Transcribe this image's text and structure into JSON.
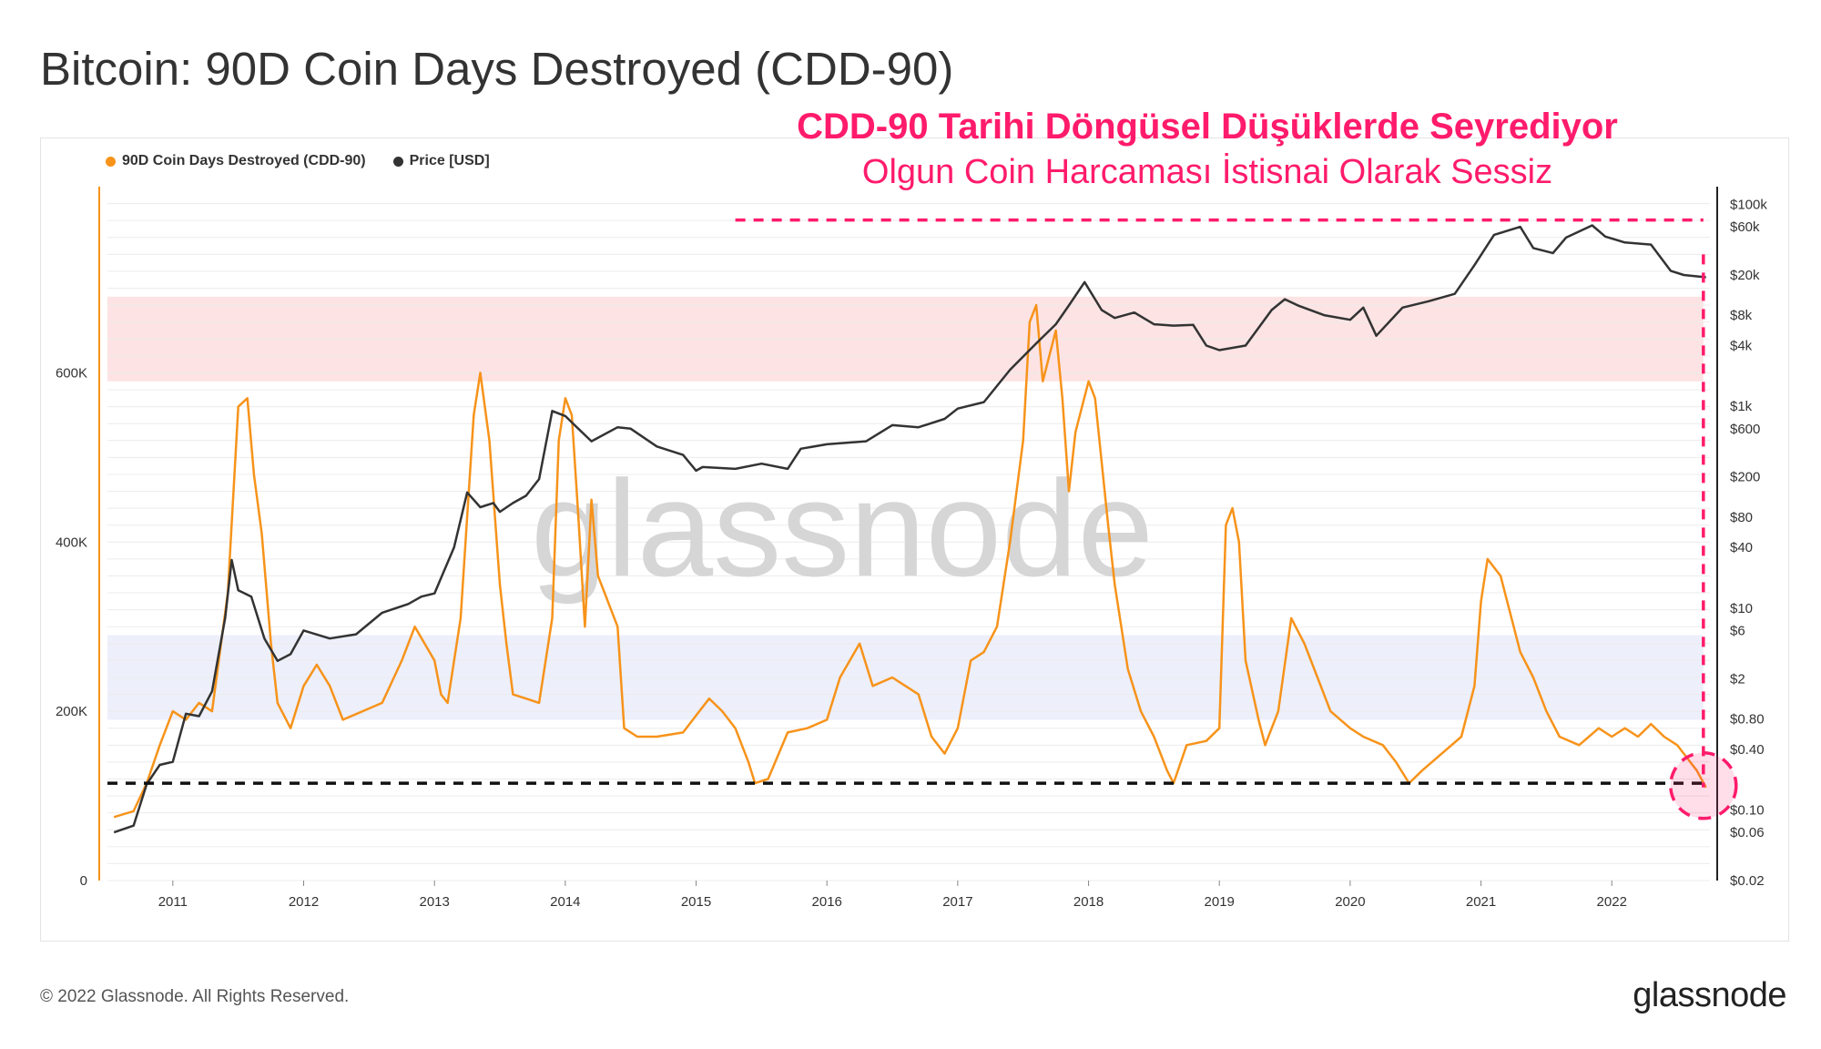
{
  "title": "Bitcoin: 90D Coin Days Destroyed (CDD-90)",
  "annotation": {
    "headline": "CDD-90 Tarihi Döngüsel Düşüklerde Seyrediyor",
    "subline": "Olgun Coin Harcaması İstisnai Olarak Sessiz",
    "color": "#ff1b6b"
  },
  "footer": {
    "copyright": "© 2022 Glassnode. All Rights Reserved.",
    "brand": "glassnode"
  },
  "watermark": "glassnode",
  "chart_data": {
    "type": "line",
    "legend": [
      {
        "name": "90D Coin Days Destroyed (CDD-90)",
        "color": "#f7931a"
      },
      {
        "name": "Price [USD]",
        "color": "#333333"
      }
    ],
    "legend_position": "top-left",
    "x_ticks": [
      "2011",
      "2012",
      "2013",
      "2014",
      "2015",
      "2016",
      "2017",
      "2018",
      "2019",
      "2020",
      "2021",
      "2022"
    ],
    "x_range": [
      2010.5,
      2022.75
    ],
    "y_left": {
      "ticks": [
        {
          "value": 0,
          "label": "0"
        },
        {
          "value": 200000,
          "label": "200K"
        },
        {
          "value": 400000,
          "label": "400K"
        },
        {
          "value": 600000,
          "label": "600K"
        }
      ],
      "range": [
        0,
        820000
      ]
    },
    "y_right": {
      "scale": "log",
      "range": [
        0.02,
        150000
      ],
      "ticks": [
        {
          "value": 100000,
          "label": "$100k"
        },
        {
          "value": 60000,
          "label": "$60k"
        },
        {
          "value": 20000,
          "label": "$20k"
        },
        {
          "value": 8000,
          "label": "$8k"
        },
        {
          "value": 4000,
          "label": "$4k"
        },
        {
          "value": 1000,
          "label": "$1k"
        },
        {
          "value": 600,
          "label": "$600"
        },
        {
          "value": 200,
          "label": "$200"
        },
        {
          "value": 80,
          "label": "$80"
        },
        {
          "value": 40,
          "label": "$40"
        },
        {
          "value": 10,
          "label": "$10"
        },
        {
          "value": 6,
          "label": "$6"
        },
        {
          "value": 2,
          "label": "$2"
        },
        {
          "value": 0.8,
          "label": "$0.80"
        },
        {
          "value": 0.4,
          "label": "$0.40"
        },
        {
          "value": 0.1,
          "label": "$0.10"
        },
        {
          "value": 0.06,
          "label": "$0.06"
        },
        {
          "value": 0.02,
          "label": "$0.02"
        }
      ]
    },
    "grid": true,
    "bands": [
      {
        "y_range": [
          590000,
          690000
        ],
        "color": "#fde3e3"
      },
      {
        "y_range": [
          190000,
          290000
        ],
        "color": "#edeffb"
      }
    ],
    "reference_lines": [
      {
        "axis": "left",
        "y": 115000,
        "x_range": [
          2010.5,
          2022.75
        ],
        "color": "#111111",
        "style": "dashed"
      },
      {
        "axis": "right",
        "y": 70000,
        "x_range": [
          2015.3,
          2022.7
        ],
        "color": "#ff1b6b",
        "style": "dashed"
      },
      {
        "axis": "x",
        "x": 2022.7,
        "y_range": [
          110000,
          740000
        ],
        "color": "#ff1b6b",
        "style": "dashed"
      }
    ],
    "highlight": {
      "x": 2022.7,
      "y": 110000,
      "color": "#ff1b6b"
    },
    "series": [
      {
        "name": "90D Coin Days Destroyed (CDD-90)",
        "color": "#f7931a",
        "axis": "left",
        "points": [
          [
            2010.55,
            75000
          ],
          [
            2010.7,
            82000
          ],
          [
            2010.8,
            115000
          ],
          [
            2010.9,
            160000
          ],
          [
            2011.0,
            200000
          ],
          [
            2011.1,
            190000
          ],
          [
            2011.2,
            210000
          ],
          [
            2011.3,
            200000
          ],
          [
            2011.42,
            340000
          ],
          [
            2011.5,
            560000
          ],
          [
            2011.57,
            570000
          ],
          [
            2011.62,
            480000
          ],
          [
            2011.68,
            410000
          ],
          [
            2011.75,
            280000
          ],
          [
            2011.8,
            210000
          ],
          [
            2011.9,
            180000
          ],
          [
            2012.0,
            230000
          ],
          [
            2012.1,
            255000
          ],
          [
            2012.2,
            230000
          ],
          [
            2012.3,
            190000
          ],
          [
            2012.45,
            200000
          ],
          [
            2012.6,
            210000
          ],
          [
            2012.75,
            260000
          ],
          [
            2012.85,
            300000
          ],
          [
            2013.0,
            260000
          ],
          [
            2013.05,
            220000
          ],
          [
            2013.1,
            210000
          ],
          [
            2013.2,
            310000
          ],
          [
            2013.3,
            550000
          ],
          [
            2013.35,
            600000
          ],
          [
            2013.42,
            520000
          ],
          [
            2013.5,
            350000
          ],
          [
            2013.55,
            280000
          ],
          [
            2013.6,
            220000
          ],
          [
            2013.7,
            215000
          ],
          [
            2013.8,
            210000
          ],
          [
            2013.9,
            310000
          ],
          [
            2013.95,
            520000
          ],
          [
            2014.0,
            570000
          ],
          [
            2014.05,
            550000
          ],
          [
            2014.1,
            430000
          ],
          [
            2014.15,
            300000
          ],
          [
            2014.2,
            450000
          ],
          [
            2014.25,
            360000
          ],
          [
            2014.3,
            340000
          ],
          [
            2014.35,
            320000
          ],
          [
            2014.4,
            300000
          ],
          [
            2014.45,
            180000
          ],
          [
            2014.55,
            170000
          ],
          [
            2014.7,
            170000
          ],
          [
            2014.9,
            175000
          ],
          [
            2015.0,
            195000
          ],
          [
            2015.1,
            215000
          ],
          [
            2015.2,
            200000
          ],
          [
            2015.3,
            180000
          ],
          [
            2015.4,
            140000
          ],
          [
            2015.45,
            115000
          ],
          [
            2015.55,
            120000
          ],
          [
            2015.7,
            175000
          ],
          [
            2015.85,
            180000
          ],
          [
            2016.0,
            190000
          ],
          [
            2016.1,
            240000
          ],
          [
            2016.25,
            280000
          ],
          [
            2016.35,
            230000
          ],
          [
            2016.5,
            240000
          ],
          [
            2016.7,
            220000
          ],
          [
            2016.8,
            170000
          ],
          [
            2016.9,
            150000
          ],
          [
            2017.0,
            180000
          ],
          [
            2017.1,
            260000
          ],
          [
            2017.2,
            270000
          ],
          [
            2017.3,
            300000
          ],
          [
            2017.4,
            400000
          ],
          [
            2017.5,
            520000
          ],
          [
            2017.55,
            660000
          ],
          [
            2017.6,
            680000
          ],
          [
            2017.65,
            590000
          ],
          [
            2017.75,
            650000
          ],
          [
            2017.8,
            570000
          ],
          [
            2017.85,
            460000
          ],
          [
            2017.9,
            530000
          ],
          [
            2018.0,
            590000
          ],
          [
            2018.05,
            570000
          ],
          [
            2018.15,
            420000
          ],
          [
            2018.2,
            350000
          ],
          [
            2018.3,
            250000
          ],
          [
            2018.4,
            200000
          ],
          [
            2018.5,
            170000
          ],
          [
            2018.6,
            130000
          ],
          [
            2018.65,
            115000
          ],
          [
            2018.75,
            160000
          ],
          [
            2018.9,
            165000
          ],
          [
            2019.0,
            180000
          ],
          [
            2019.05,
            420000
          ],
          [
            2019.1,
            440000
          ],
          [
            2019.15,
            400000
          ],
          [
            2019.2,
            260000
          ],
          [
            2019.3,
            190000
          ],
          [
            2019.35,
            160000
          ],
          [
            2019.45,
            200000
          ],
          [
            2019.55,
            310000
          ],
          [
            2019.65,
            280000
          ],
          [
            2019.75,
            240000
          ],
          [
            2019.85,
            200000
          ],
          [
            2020.0,
            180000
          ],
          [
            2020.1,
            170000
          ],
          [
            2020.25,
            160000
          ],
          [
            2020.35,
            140000
          ],
          [
            2020.45,
            115000
          ],
          [
            2020.55,
            130000
          ],
          [
            2020.7,
            150000
          ],
          [
            2020.85,
            170000
          ],
          [
            2020.95,
            230000
          ],
          [
            2021.0,
            330000
          ],
          [
            2021.05,
            380000
          ],
          [
            2021.15,
            360000
          ],
          [
            2021.25,
            300000
          ],
          [
            2021.3,
            270000
          ],
          [
            2021.4,
            240000
          ],
          [
            2021.5,
            200000
          ],
          [
            2021.6,
            170000
          ],
          [
            2021.75,
            160000
          ],
          [
            2021.9,
            180000
          ],
          [
            2022.0,
            170000
          ],
          [
            2022.1,
            180000
          ],
          [
            2022.2,
            170000
          ],
          [
            2022.3,
            185000
          ],
          [
            2022.4,
            170000
          ],
          [
            2022.5,
            160000
          ],
          [
            2022.6,
            140000
          ],
          [
            2022.65,
            130000
          ],
          [
            2022.72,
            110000
          ]
        ]
      },
      {
        "name": "Price [USD]",
        "color": "#333333",
        "axis": "right",
        "points": [
          [
            2010.55,
            0.06
          ],
          [
            2010.7,
            0.07
          ],
          [
            2010.8,
            0.18
          ],
          [
            2010.9,
            0.28
          ],
          [
            2011.0,
            0.3
          ],
          [
            2011.1,
            0.9
          ],
          [
            2011.2,
            0.85
          ],
          [
            2011.3,
            1.5
          ],
          [
            2011.4,
            8
          ],
          [
            2011.45,
            30
          ],
          [
            2011.5,
            15
          ],
          [
            2011.6,
            13
          ],
          [
            2011.7,
            5
          ],
          [
            2011.8,
            3
          ],
          [
            2011.9,
            3.5
          ],
          [
            2012.0,
            6
          ],
          [
            2012.2,
            5
          ],
          [
            2012.4,
            5.5
          ],
          [
            2012.6,
            9
          ],
          [
            2012.8,
            11
          ],
          [
            2012.9,
            13
          ],
          [
            2013.0,
            14
          ],
          [
            2013.15,
            40
          ],
          [
            2013.25,
            140
          ],
          [
            2013.35,
            100
          ],
          [
            2013.45,
            110
          ],
          [
            2013.5,
            90
          ],
          [
            2013.6,
            110
          ],
          [
            2013.7,
            130
          ],
          [
            2013.8,
            190
          ],
          [
            2013.9,
            900
          ],
          [
            2014.0,
            800
          ],
          [
            2014.1,
            600
          ],
          [
            2014.2,
            450
          ],
          [
            2014.4,
            620
          ],
          [
            2014.5,
            600
          ],
          [
            2014.7,
            400
          ],
          [
            2014.9,
            330
          ],
          [
            2015.0,
            230
          ],
          [
            2015.05,
            250
          ],
          [
            2015.3,
            240
          ],
          [
            2015.5,
            270
          ],
          [
            2015.7,
            240
          ],
          [
            2015.8,
            380
          ],
          [
            2016.0,
            420
          ],
          [
            2016.3,
            450
          ],
          [
            2016.5,
            650
          ],
          [
            2016.7,
            620
          ],
          [
            2016.9,
            750
          ],
          [
            2017.0,
            950
          ],
          [
            2017.2,
            1100
          ],
          [
            2017.4,
            2300
          ],
          [
            2017.6,
            4200
          ],
          [
            2017.75,
            6500
          ],
          [
            2017.85,
            10000
          ],
          [
            2017.97,
            17000
          ],
          [
            2018.1,
            9000
          ],
          [
            2018.2,
            7500
          ],
          [
            2018.35,
            8500
          ],
          [
            2018.5,
            6500
          ],
          [
            2018.65,
            6300
          ],
          [
            2018.8,
            6400
          ],
          [
            2018.9,
            4000
          ],
          [
            2019.0,
            3600
          ],
          [
            2019.2,
            4000
          ],
          [
            2019.4,
            9000
          ],
          [
            2019.5,
            11500
          ],
          [
            2019.6,
            10000
          ],
          [
            2019.8,
            8000
          ],
          [
            2020.0,
            7200
          ],
          [
            2020.1,
            9500
          ],
          [
            2020.2,
            5000
          ],
          [
            2020.4,
            9500
          ],
          [
            2020.6,
            11000
          ],
          [
            2020.8,
            13000
          ],
          [
            2020.95,
            25000
          ],
          [
            2021.1,
            50000
          ],
          [
            2021.3,
            60000
          ],
          [
            2021.4,
            37000
          ],
          [
            2021.55,
            33000
          ],
          [
            2021.65,
            47000
          ],
          [
            2021.85,
            62000
          ],
          [
            2021.95,
            48000
          ],
          [
            2022.1,
            42000
          ],
          [
            2022.3,
            40000
          ],
          [
            2022.45,
            22000
          ],
          [
            2022.55,
            20000
          ],
          [
            2022.72,
            19000
          ]
        ]
      }
    ]
  }
}
